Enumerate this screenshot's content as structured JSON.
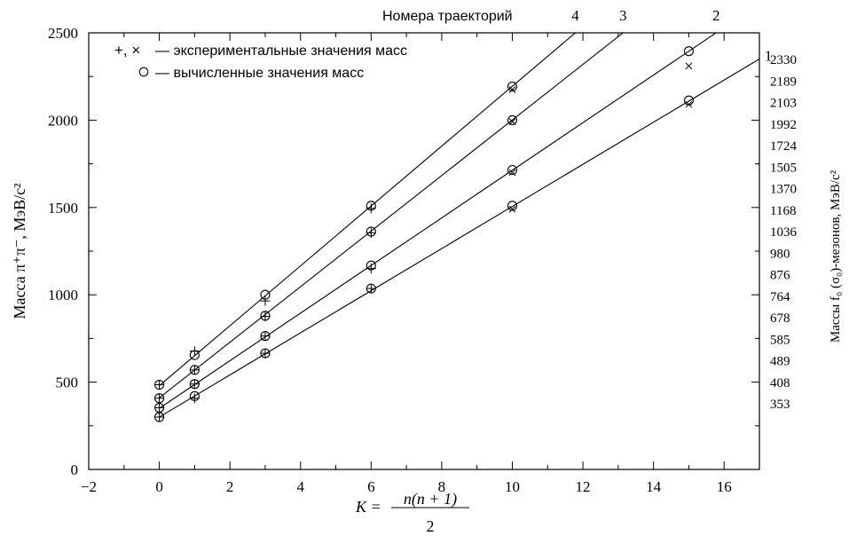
{
  "chart_data": {
    "type": "scatter",
    "title": "",
    "xlabel": "K = n(n + 1)/2",
    "xlabel_parts": {
      "lhs": "K =",
      "numerator": "n(n + 1)",
      "denominator": "2"
    },
    "ylabel": "Масса π⁺π⁻, МэВ/c²",
    "ylabel_right": "Массы f₀ (σ₀)-мезонов, МэВ/c²",
    "xlim": [
      -2,
      17
    ],
    "ylim": [
      0,
      2500
    ],
    "x_ticks": [
      -2,
      0,
      2,
      4,
      6,
      8,
      10,
      12,
      14,
      16
    ],
    "x_tick_labels": [
      "−2",
      "0",
      "2",
      "4",
      "6",
      "8",
      "10",
      "12",
      "14",
      "16"
    ],
    "y_ticks": [
      0,
      500,
      1000,
      1500,
      2000,
      2500
    ],
    "y_tick_labels": [
      "0",
      "500",
      "1000",
      "1500",
      "2000",
      "2500"
    ],
    "right_mass_labels": [
      2330,
      2189,
      2103,
      1992,
      1724,
      1505,
      1370,
      1168,
      1036,
      980,
      876,
      764,
      678,
      585,
      489,
      408,
      353
    ],
    "trajectory_header": "Номера траекторий",
    "legend": {
      "position": "top-left",
      "experimental_symbols": "+, ×",
      "experimental_label": "— экспериментальные значения масс",
      "computed_label": "— вычисленные значения масс"
    },
    "trajectories": [
      {
        "number": "1",
        "intercept": 300,
        "slope": 120.6,
        "x": [
          0,
          1,
          3,
          6,
          10,
          15
        ],
        "computed": [
          300,
          420,
          665,
          1036,
          1510,
          2113
        ],
        "experimental": [
          300,
          408,
          665,
          1036,
          1490,
          2090
        ]
      },
      {
        "number": "2",
        "intercept": 350,
        "slope": 136.3,
        "x": [
          0,
          1,
          3,
          6,
          10,
          15
        ],
        "computed": [
          353,
          489,
          764,
          1168,
          1715,
          2395
        ],
        "experimental": [
          353,
          489,
          764,
          1150,
          1700,
          2310
        ]
      },
      {
        "number": "3",
        "intercept": 410,
        "slope": 159.1,
        "x": [
          0,
          1,
          3,
          6,
          10
        ],
        "computed": [
          408,
          570,
          880,
          1362,
          2000
        ],
        "experimental": [
          408,
          570,
          876,
          1355,
          1992
        ]
      },
      {
        "number": "4",
        "intercept": 480,
        "slope": 171.4,
        "x": [
          0,
          1,
          3,
          6,
          10
        ],
        "computed": [
          485,
          655,
          1000,
          1510,
          2193
        ],
        "experimental": [
          485,
          678,
          965,
          1495,
          2175
        ]
      }
    ]
  }
}
